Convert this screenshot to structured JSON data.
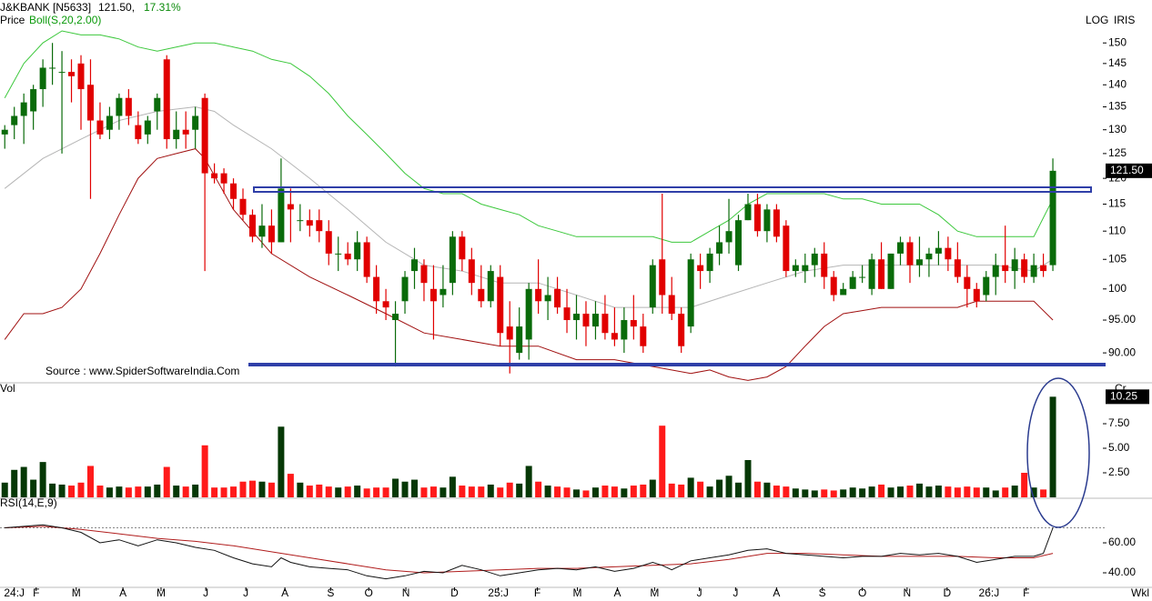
{
  "chart_data": {
    "type": "candlestick",
    "symbol": "J&KBANK [N5633]",
    "price_text": "121.50,",
    "change_text": "17.31%",
    "price_label": "Price",
    "scale_label": "LOG",
    "indicator_label": "IRIS",
    "source": "Source : www.SpiderSoftwareIndia.Com",
    "period_label": "Wkl",
    "up_color": "#0a6b0a",
    "down_color": "#e10000",
    "xlim": [
      -0.5,
      112
    ],
    "x_labels": [
      {
        "value": 1,
        "label": "24:J"
      },
      {
        "value": 3.3,
        "label": "F"
      },
      {
        "value": 7.5,
        "label": "M"
      },
      {
        "value": 12.4,
        "label": "A"
      },
      {
        "value": 16.4,
        "label": "M"
      },
      {
        "value": 21.1,
        "label": "J"
      },
      {
        "value": 25.3,
        "label": "J"
      },
      {
        "value": 29.4,
        "label": "A"
      },
      {
        "value": 34.2,
        "label": "S"
      },
      {
        "value": 38.2,
        "label": "O"
      },
      {
        "value": 42.1,
        "label": "N"
      },
      {
        "value": 47.2,
        "label": "D"
      },
      {
        "value": 51.8,
        "label": "25:J"
      },
      {
        "value": 55.9,
        "label": "F"
      },
      {
        "value": 60.1,
        "label": "M"
      },
      {
        "value": 64.3,
        "label": "A"
      },
      {
        "value": 68.2,
        "label": "M"
      },
      {
        "value": 72.9,
        "label": "J"
      },
      {
        "value": 76.7,
        "label": "J"
      },
      {
        "value": 81,
        "label": "A"
      },
      {
        "value": 85.8,
        "label": "S"
      },
      {
        "value": 90,
        "label": "O"
      },
      {
        "value": 94.7,
        "label": "N"
      },
      {
        "value": 98.9,
        "label": "D"
      },
      {
        "value": 103.3,
        "label": "26:J"
      },
      {
        "value": 107.2,
        "label": "F"
      }
    ],
    "log_scale": true,
    "ylim": [
      85.8,
      161
    ],
    "yticks": [
      {
        "value": 90,
        "label": "90.00"
      },
      {
        "value": 95,
        "label": "95.00"
      },
      100,
      105,
      110,
      115,
      120,
      125,
      130,
      135,
      140,
      145,
      150
    ],
    "last_value_label": "121.50",
    "candles": [
      [
        129,
        131,
        126,
        130
      ],
      [
        131,
        135,
        128,
        133
      ],
      [
        133,
        138,
        127,
        136
      ],
      [
        134,
        140,
        130,
        139
      ],
      [
        139,
        146,
        135,
        144
      ],
      [
        144,
        150,
        140,
        144
      ],
      [
        143,
        148,
        125,
        143
      ],
      [
        143,
        146,
        136,
        142
      ],
      [
        145,
        147,
        130,
        139
      ],
      [
        140,
        146,
        116,
        132
      ],
      [
        132,
        136,
        128,
        129
      ],
      [
        130,
        135,
        128,
        133
      ],
      [
        133,
        138,
        130,
        137
      ],
      [
        137,
        139,
        131,
        133
      ],
      [
        131,
        134,
        127,
        128
      ],
      [
        129,
        133,
        127,
        132
      ],
      [
        134,
        138,
        130,
        137
      ],
      [
        146,
        147,
        126,
        128
      ],
      [
        128,
        134,
        126,
        130
      ],
      [
        130,
        134,
        126,
        129
      ],
      [
        130,
        135,
        126,
        133
      ],
      [
        137,
        138,
        103,
        121
      ],
      [
        121,
        123,
        119,
        120
      ],
      [
        121,
        122,
        117,
        119
      ],
      [
        119,
        120,
        114,
        116
      ],
      [
        116,
        118,
        112,
        113
      ],
      [
        113,
        114,
        108,
        109
      ],
      [
        109,
        115,
        107,
        111
      ],
      [
        111,
        114,
        106,
        108
      ],
      [
        108,
        124,
        108,
        118
      ],
      [
        115,
        118,
        108,
        114
      ],
      [
        112,
        115,
        110,
        112
      ],
      [
        112,
        114,
        109,
        111
      ],
      [
        112,
        114,
        108,
        110
      ],
      [
        110,
        112,
        104,
        106
      ],
      [
        106,
        109,
        103,
        106
      ],
      [
        106,
        108,
        104,
        105
      ],
      [
        105,
        110,
        103,
        108
      ],
      [
        108,
        109,
        101,
        102
      ],
      [
        102,
        104,
        96,
        98
      ],
      [
        98,
        100,
        95,
        97
      ],
      [
        95,
        98,
        88,
        96
      ],
      [
        98,
        103,
        96,
        102
      ],
      [
        103,
        107,
        100,
        105
      ],
      [
        104,
        105,
        98,
        101
      ],
      [
        100,
        104,
        92,
        98
      ],
      [
        99,
        104,
        97,
        100
      ],
      [
        101,
        110,
        99,
        109
      ],
      [
        109,
        110,
        103,
        105
      ],
      [
        105,
        107,
        99,
        101
      ],
      [
        100,
        104,
        97,
        98
      ],
      [
        98,
        104,
        97,
        103
      ],
      [
        102,
        104,
        91,
        93
      ],
      [
        94,
        98,
        87,
        92
      ],
      [
        90,
        97,
        89,
        94
      ],
      [
        92,
        101,
        89,
        100
      ],
      [
        100,
        105,
        96,
        98
      ],
      [
        98,
        102,
        95,
        99
      ],
      [
        100,
        102,
        96,
        97
      ],
      [
        97,
        100,
        93,
        95
      ],
      [
        95,
        99,
        92,
        96
      ],
      [
        96,
        98,
        91,
        94
      ],
      [
        94,
        98,
        92,
        96
      ],
      [
        96,
        99,
        92,
        93
      ],
      [
        93,
        97,
        91,
        92
      ],
      [
        92,
        97,
        90,
        95
      ],
      [
        95,
        99,
        92,
        94
      ],
      [
        94,
        96,
        90,
        91
      ],
      [
        97,
        105,
        96,
        104
      ],
      [
        105,
        117,
        96,
        99
      ],
      [
        99,
        102,
        95,
        96
      ],
      [
        96,
        97,
        90,
        91
      ],
      [
        94,
        106,
        93,
        105
      ],
      [
        104,
        106,
        100,
        103
      ],
      [
        103,
        107,
        101,
        106
      ],
      [
        106,
        111,
        104,
        108
      ],
      [
        108,
        116,
        106,
        110
      ],
      [
        104,
        113,
        103,
        112
      ],
      [
        112,
        117,
        112,
        115
      ],
      [
        115,
        117,
        109,
        110
      ],
      [
        110,
        115,
        108,
        114
      ],
      [
        114,
        115,
        108,
        109
      ],
      [
        111,
        112,
        102,
        103
      ],
      [
        103,
        105,
        102,
        104
      ],
      [
        103,
        106,
        101,
        104
      ],
      [
        104,
        107,
        102,
        106
      ],
      [
        106,
        108,
        100,
        102
      ],
      [
        102,
        103,
        98,
        99
      ],
      [
        99,
        101,
        99,
        100
      ],
      [
        100,
        103,
        100,
        102
      ],
      [
        102,
        104,
        101,
        102
      ],
      [
        100,
        106,
        99,
        105
      ],
      [
        105,
        108,
        100,
        100
      ],
      [
        100,
        106,
        100,
        106
      ],
      [
        106,
        109,
        104,
        108
      ],
      [
        108,
        109,
        101,
        104
      ],
      [
        104,
        109,
        102,
        105
      ],
      [
        105,
        107,
        102,
        106
      ],
      [
        106,
        110,
        104,
        107
      ],
      [
        107,
        109,
        103,
        105
      ],
      [
        105,
        108,
        101,
        102
      ],
      [
        102,
        104,
        97,
        100
      ],
      [
        100,
        101,
        97,
        98
      ],
      [
        99,
        103,
        98,
        102
      ],
      [
        102,
        106,
        99,
        104
      ],
      [
        104,
        111,
        101,
        103
      ],
      [
        103,
        107,
        100,
        105
      ],
      [
        105,
        106,
        101,
        102
      ],
      [
        102,
        106,
        101,
        104
      ],
      [
        104,
        106,
        102,
        103
      ],
      [
        104,
        124,
        103,
        121.5
      ]
    ],
    "bollinger": {
      "label": "Boll(S,20,2.00)",
      "upper": {
        "color": "#3cc83c",
        "x": [
          0,
          2,
          4,
          6,
          8,
          10,
          12,
          14,
          16,
          18,
          20,
          22,
          24,
          26,
          28,
          30,
          32,
          34,
          36,
          38,
          40,
          42,
          44,
          46,
          48,
          50,
          52,
          54,
          56,
          58,
          60,
          62,
          64,
          66,
          68,
          70,
          72,
          74,
          76,
          78,
          80,
          82,
          84,
          86,
          88,
          90,
          92,
          94,
          96,
          98,
          100,
          102,
          104,
          106,
          108,
          110
        ],
        "values": [
          137,
          145,
          150,
          153,
          152,
          152,
          151,
          149,
          148,
          149,
          150,
          150,
          149,
          148,
          146,
          145,
          142,
          138,
          133,
          129,
          125,
          121,
          118,
          117,
          117,
          115,
          114,
          113,
          111,
          110,
          109,
          109,
          109,
          109,
          109,
          108,
          108,
          110,
          112,
          115,
          117,
          117,
          117,
          117,
          116,
          116,
          115,
          115,
          115,
          113,
          110,
          109,
          109,
          109,
          109,
          116
        ]
      },
      "middle": {
        "color": "#b5b5b5",
        "x": [
          0,
          4,
          8,
          12,
          16,
          20,
          22,
          24,
          28,
          32,
          36,
          40,
          44,
          48,
          52,
          56,
          60,
          64,
          68,
          72,
          76,
          80,
          84,
          88,
          92,
          96,
          100,
          104,
          108,
          110
        ],
        "values": [
          118,
          124,
          128,
          132,
          134,
          135,
          134,
          131,
          126,
          120,
          114,
          108,
          104,
          103,
          101,
          101,
          99,
          97,
          97,
          97,
          99,
          101,
          103,
          104,
          104,
          104,
          104,
          104,
          103,
          105
        ]
      },
      "lower": {
        "color": "#a01010",
        "x": [
          0,
          2,
          4,
          6,
          8,
          10,
          12,
          14,
          16,
          18,
          20,
          21,
          24,
          28,
          32,
          36,
          40,
          44,
          48,
          52,
          56,
          60,
          64,
          68,
          72,
          74,
          76,
          78,
          80,
          82,
          84,
          86,
          88,
          90,
          92,
          96,
          100,
          102,
          104,
          108,
          110
        ],
        "values": [
          92,
          96,
          96,
          97,
          100,
          106,
          113,
          120,
          124,
          125,
          126,
          124,
          114,
          106,
          102,
          99,
          96,
          93,
          92,
          91,
          91,
          89,
          89,
          88,
          87,
          87.5,
          86.5,
          86,
          86.5,
          88,
          91,
          94,
          96,
          96.5,
          97,
          97,
          97,
          98,
          98,
          98,
          95
        ]
      }
    },
    "volume": {
      "label": "Vol",
      "unit_label": "Cr",
      "ylim": [
        0,
        11.3
      ],
      "yticks": [
        {
          "value": 2.5,
          "label": "2.50"
        },
        {
          "value": 5,
          "label": "5.00"
        },
        {
          "value": 7.5,
          "label": "7.50"
        }
      ],
      "last_label": "10.25",
      "up_color": "#063806",
      "down_color": "#ff1a1a",
      "values": [
        1.5,
        2.8,
        3.1,
        1.8,
        3.6,
        1.4,
        1.3,
        1.2,
        1.5,
        3.2,
        1.2,
        1.0,
        1.1,
        1.0,
        1.1,
        1.1,
        1.3,
        3.1,
        1.2,
        1.1,
        1.3,
        5.3,
        1.0,
        1.0,
        1.1,
        1.6,
        1.7,
        1.6,
        1.5,
        7.2,
        2.4,
        1.5,
        1.2,
        1.3,
        1.1,
        1.0,
        1.1,
        1.2,
        0.9,
        1.0,
        1.0,
        1.9,
        1.6,
        1.8,
        1.0,
        1.1,
        1.0,
        2.1,
        1.2,
        1.1,
        1.1,
        1.3,
        1.0,
        1.5,
        1.4,
        3.2,
        1.6,
        1.2,
        1.1,
        1.0,
        0.8,
        0.7,
        1.0,
        1.2,
        1.1,
        0.9,
        1.2,
        1.3,
        1.8,
        7.3,
        1.4,
        1.3,
        2.0,
        1.6,
        1.1,
        1.8,
        2.2,
        1.5,
        3.8,
        1.6,
        1.5,
        1.2,
        1.1,
        0.9,
        0.8,
        0.7,
        0.8,
        0.7,
        0.8,
        1.0,
        0.9,
        1.1,
        1.3,
        1.0,
        1.1,
        1.2,
        1.4,
        1.1,
        1.2,
        1.1,
        1.0,
        1.1,
        1.0,
        1.0,
        0.7,
        1.0,
        1.2,
        2.5,
        1.0,
        0.8,
        10.25
      ]
    },
    "rsi": {
      "label": "RSI(14,E,9)",
      "ylim": [
        30.9,
        85.5
      ],
      "yticks": [
        {
          "value": 40,
          "label": "40.00"
        },
        {
          "value": 60,
          "label": "60.00"
        }
      ],
      "reference_line": 70,
      "rsi_line": {
        "color": "#111111",
        "x": [
          0,
          2,
          4,
          6,
          8,
          10,
          12,
          14,
          16,
          18,
          20,
          22,
          24,
          26,
          28,
          29,
          30,
          32,
          34,
          36,
          38,
          40,
          42,
          44,
          46,
          48,
          50,
          52,
          54,
          56,
          58,
          60,
          62,
          64,
          66,
          68,
          69,
          70,
          72,
          74,
          76,
          78,
          80,
          82,
          84,
          86,
          88,
          90,
          92,
          94,
          96,
          98,
          100,
          102,
          104,
          106,
          108,
          109,
          110
        ],
        "values": [
          70,
          71,
          72,
          70,
          67,
          60,
          62,
          58,
          62,
          60,
          57,
          55,
          50,
          46,
          44,
          50,
          47,
          44,
          43,
          42,
          38,
          36,
          38,
          41,
          40,
          45,
          42,
          38,
          40,
          42,
          43,
          42,
          44,
          41,
          43,
          47,
          45,
          42,
          48,
          50,
          52,
          55,
          56,
          53,
          52,
          51,
          50,
          51,
          51,
          53,
          52,
          53,
          51,
          47,
          49,
          51,
          51,
          53,
          70
        ]
      },
      "signal_line": {
        "color": "#b01c1c",
        "x": [
          0,
          4,
          8,
          12,
          16,
          20,
          24,
          28,
          32,
          36,
          40,
          44,
          48,
          52,
          56,
          60,
          64,
          68,
          72,
          76,
          80,
          84,
          88,
          92,
          96,
          100,
          104,
          108,
          110
        ],
        "values": [
          70,
          71,
          69,
          66,
          63,
          61,
          58,
          54,
          50,
          46,
          42,
          40,
          41,
          42,
          43,
          43,
          44,
          45,
          46,
          49,
          53,
          53,
          52,
          51,
          51,
          51,
          50,
          50,
          53
        ]
      }
    }
  }
}
